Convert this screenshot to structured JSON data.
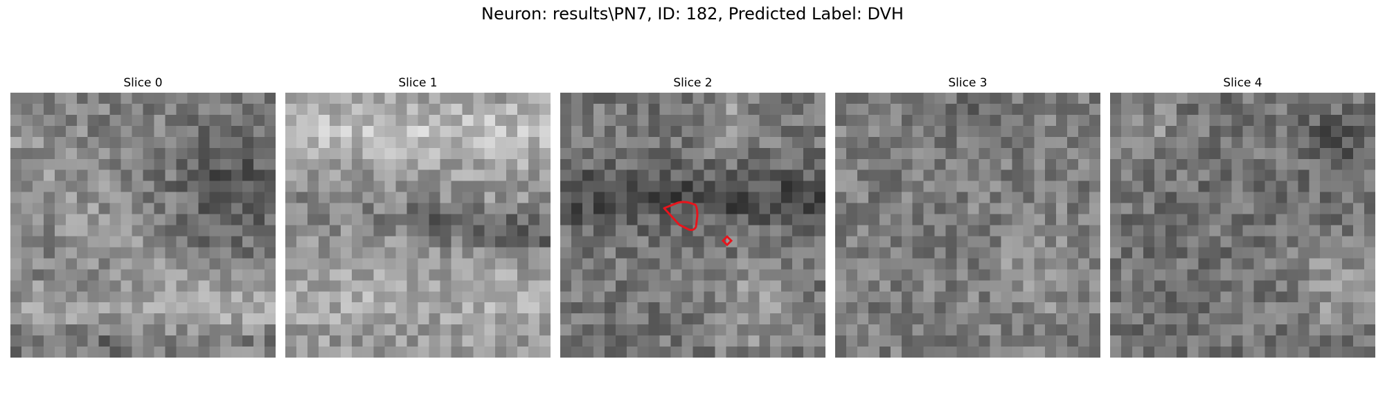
{
  "figure": {
    "title": "Neuron: results\\PN7, ID: 182, Predicted Label: DVH",
    "overlay_color": "#e8141c"
  },
  "slices": [
    {
      "label": "Slice 0",
      "seed": 11,
      "base": 128,
      "has_roi": false
    },
    {
      "label": "Slice 1",
      "seed": 23,
      "base": 150,
      "has_roi": false
    },
    {
      "label": "Slice 2",
      "seed": 37,
      "base": 118,
      "has_roi": true
    },
    {
      "label": "Slice 3",
      "seed": 53,
      "base": 125,
      "has_roi": false
    },
    {
      "label": "Slice 4",
      "seed": 71,
      "base": 115,
      "has_roi": false
    }
  ]
}
